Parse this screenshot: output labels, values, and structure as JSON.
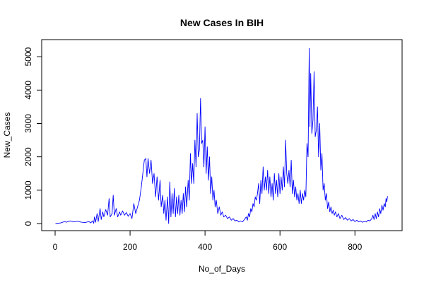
{
  "chart_data": {
    "type": "line",
    "title": "New Cases In BIH",
    "xlabel": "No_of_Days",
    "ylabel": "New_Cases",
    "xlim": [
      0,
      890
    ],
    "ylim": [
      0,
      5300
    ],
    "xticks": [
      0,
      200,
      400,
      600,
      800
    ],
    "yticks": [
      0,
      1000,
      2000,
      3000,
      4000,
      5000
    ],
    "grid": false,
    "legend": "none",
    "series": [
      {
        "color": "#0000ff",
        "points": [
          [
            1,
            0
          ],
          [
            15,
            20
          ],
          [
            25,
            60
          ],
          [
            30,
            40
          ],
          [
            40,
            80
          ],
          [
            50,
            50
          ],
          [
            60,
            70
          ],
          [
            70,
            40
          ],
          [
            80,
            30
          ],
          [
            90,
            60
          ],
          [
            95,
            20
          ],
          [
            100,
            80
          ],
          [
            103,
            10
          ],
          [
            105,
            200
          ],
          [
            108,
            40
          ],
          [
            112,
            300
          ],
          [
            115,
            60
          ],
          [
            120,
            450
          ],
          [
            123,
            120
          ],
          [
            127,
            350
          ],
          [
            130,
            200
          ],
          [
            135,
            420
          ],
          [
            140,
            250
          ],
          [
            144,
            750
          ],
          [
            147,
            200
          ],
          [
            152,
            300
          ],
          [
            155,
            850
          ],
          [
            158,
            250
          ],
          [
            163,
            450
          ],
          [
            167,
            200
          ],
          [
            172,
            350
          ],
          [
            175,
            250
          ],
          [
            180,
            380
          ],
          [
            185,
            250
          ],
          [
            190,
            330
          ],
          [
            195,
            220
          ],
          [
            200,
            300
          ],
          [
            205,
            150
          ],
          [
            210,
            600
          ],
          [
            215,
            300
          ],
          [
            220,
            500
          ],
          [
            225,
            700
          ],
          [
            230,
            1100
          ],
          [
            235,
            1600
          ],
          [
            238,
            1900
          ],
          [
            242,
            1950
          ],
          [
            245,
            1400
          ],
          [
            248,
            1950
          ],
          [
            252,
            1500
          ],
          [
            256,
            1900
          ],
          [
            260,
            1200
          ],
          [
            264,
            1500
          ],
          [
            268,
            800
          ],
          [
            272,
            1400
          ],
          [
            276,
            700
          ],
          [
            280,
            1300
          ],
          [
            283,
            500
          ],
          [
            287,
            850
          ],
          [
            290,
            300
          ],
          [
            293,
            700
          ],
          [
            296,
            100
          ],
          [
            300,
            800
          ],
          [
            303,
            0
          ],
          [
            306,
            1250
          ],
          [
            309,
            200
          ],
          [
            312,
            900
          ],
          [
            315,
            300
          ],
          [
            318,
            1050
          ],
          [
            321,
            200
          ],
          [
            324,
            800
          ],
          [
            327,
            300
          ],
          [
            330,
            850
          ],
          [
            333,
            250
          ],
          [
            336,
            700
          ],
          [
            339,
            300
          ],
          [
            342,
            900
          ],
          [
            345,
            350
          ],
          [
            348,
            1100
          ],
          [
            351,
            500
          ],
          [
            355,
            1300
          ],
          [
            358,
            700
          ],
          [
            361,
            2100
          ],
          [
            364,
            1200
          ],
          [
            367,
            1800
          ],
          [
            370,
            1200
          ],
          [
            373,
            2500
          ],
          [
            376,
            1700
          ],
          [
            379,
            3300
          ],
          [
            382,
            2000
          ],
          [
            385,
            2200
          ],
          [
            388,
            3750
          ],
          [
            391,
            2400
          ],
          [
            394,
            2500
          ],
          [
            397,
            1700
          ],
          [
            400,
            2900
          ],
          [
            403,
            1500
          ],
          [
            406,
            2300
          ],
          [
            409,
            1300
          ],
          [
            412,
            2000
          ],
          [
            415,
            900
          ],
          [
            418,
            1400
          ],
          [
            421,
            700
          ],
          [
            424,
            1000
          ],
          [
            427,
            500
          ],
          [
            430,
            700
          ],
          [
            434,
            300
          ],
          [
            438,
            500
          ],
          [
            442,
            250
          ],
          [
            446,
            350
          ],
          [
            450,
            200
          ],
          [
            455,
            250
          ],
          [
            460,
            150
          ],
          [
            465,
            200
          ],
          [
            470,
            100
          ],
          [
            475,
            150
          ],
          [
            480,
            80
          ],
          [
            485,
            100
          ],
          [
            490,
            50
          ],
          [
            495,
            80
          ],
          [
            500,
            50
          ],
          [
            505,
            120
          ],
          [
            510,
            200
          ],
          [
            513,
            100
          ],
          [
            516,
            300
          ],
          [
            519,
            200
          ],
          [
            522,
            450
          ],
          [
            525,
            350
          ],
          [
            528,
            600
          ],
          [
            531,
            500
          ],
          [
            534,
            800
          ],
          [
            537,
            700
          ],
          [
            540,
            900
          ],
          [
            543,
            1200
          ],
          [
            546,
            600
          ],
          [
            549,
            1300
          ],
          [
            552,
            900
          ],
          [
            555,
            1700
          ],
          [
            558,
            1000
          ],
          [
            561,
            1400
          ],
          [
            564,
            1000
          ],
          [
            567,
            1600
          ],
          [
            570,
            900
          ],
          [
            573,
            1400
          ],
          [
            576,
            800
          ],
          [
            579,
            1200
          ],
          [
            582,
            700
          ],
          [
            585,
            1500
          ],
          [
            588,
            900
          ],
          [
            591,
            1300
          ],
          [
            594,
            800
          ],
          [
            597,
            1500
          ],
          [
            600,
            900
          ],
          [
            603,
            1400
          ],
          [
            606,
            1000
          ],
          [
            609,
            1700
          ],
          [
            612,
            1100
          ],
          [
            615,
            2500
          ],
          [
            618,
            1500
          ],
          [
            621,
            1200
          ],
          [
            624,
            1600
          ],
          [
            627,
            1100
          ],
          [
            630,
            1900
          ],
          [
            633,
            900
          ],
          [
            636,
            1300
          ],
          [
            639,
            800
          ],
          [
            642,
            1100
          ],
          [
            645,
            700
          ],
          [
            648,
            900
          ],
          [
            651,
            600
          ],
          [
            654,
            1000
          ],
          [
            657,
            600
          ],
          [
            660,
            900
          ],
          [
            663,
            700
          ],
          [
            666,
            1000
          ],
          [
            669,
            800
          ],
          [
            672,
            2400
          ],
          [
            675,
            2000
          ],
          [
            678,
            5250
          ],
          [
            680,
            2900
          ],
          [
            682,
            4500
          ],
          [
            685,
            2700
          ],
          [
            688,
            3100
          ],
          [
            691,
            4550
          ],
          [
            694,
            2600
          ],
          [
            697,
            2800
          ],
          [
            700,
            3500
          ],
          [
            703,
            2000
          ],
          [
            706,
            3000
          ],
          [
            709,
            1600
          ],
          [
            712,
            2100
          ],
          [
            715,
            1000
          ],
          [
            718,
            1200
          ],
          [
            721,
            700
          ],
          [
            724,
            900
          ],
          [
            727,
            450
          ],
          [
            730,
            650
          ],
          [
            733,
            350
          ],
          [
            736,
            500
          ],
          [
            739,
            300
          ],
          [
            742,
            400
          ],
          [
            745,
            250
          ],
          [
            748,
            350
          ],
          [
            752,
            200
          ],
          [
            756,
            300
          ],
          [
            760,
            150
          ],
          [
            765,
            250
          ],
          [
            770,
            120
          ],
          [
            775,
            180
          ],
          [
            780,
            100
          ],
          [
            785,
            150
          ],
          [
            790,
            80
          ],
          [
            795,
            120
          ],
          [
            800,
            60
          ],
          [
            805,
            100
          ],
          [
            810,
            50
          ],
          [
            815,
            80
          ],
          [
            820,
            40
          ],
          [
            825,
            60
          ],
          [
            830,
            50
          ],
          [
            835,
            100
          ],
          [
            840,
            80
          ],
          [
            845,
            150
          ],
          [
            848,
            250
          ],
          [
            851,
            120
          ],
          [
            854,
            300
          ],
          [
            857,
            150
          ],
          [
            860,
            350
          ],
          [
            863,
            200
          ],
          [
            866,
            450
          ],
          [
            869,
            300
          ],
          [
            872,
            550
          ],
          [
            875,
            400
          ],
          [
            878,
            600
          ],
          [
            881,
            500
          ],
          [
            883,
            750
          ],
          [
            885,
            650
          ],
          [
            887,
            820
          ]
        ]
      }
    ]
  }
}
